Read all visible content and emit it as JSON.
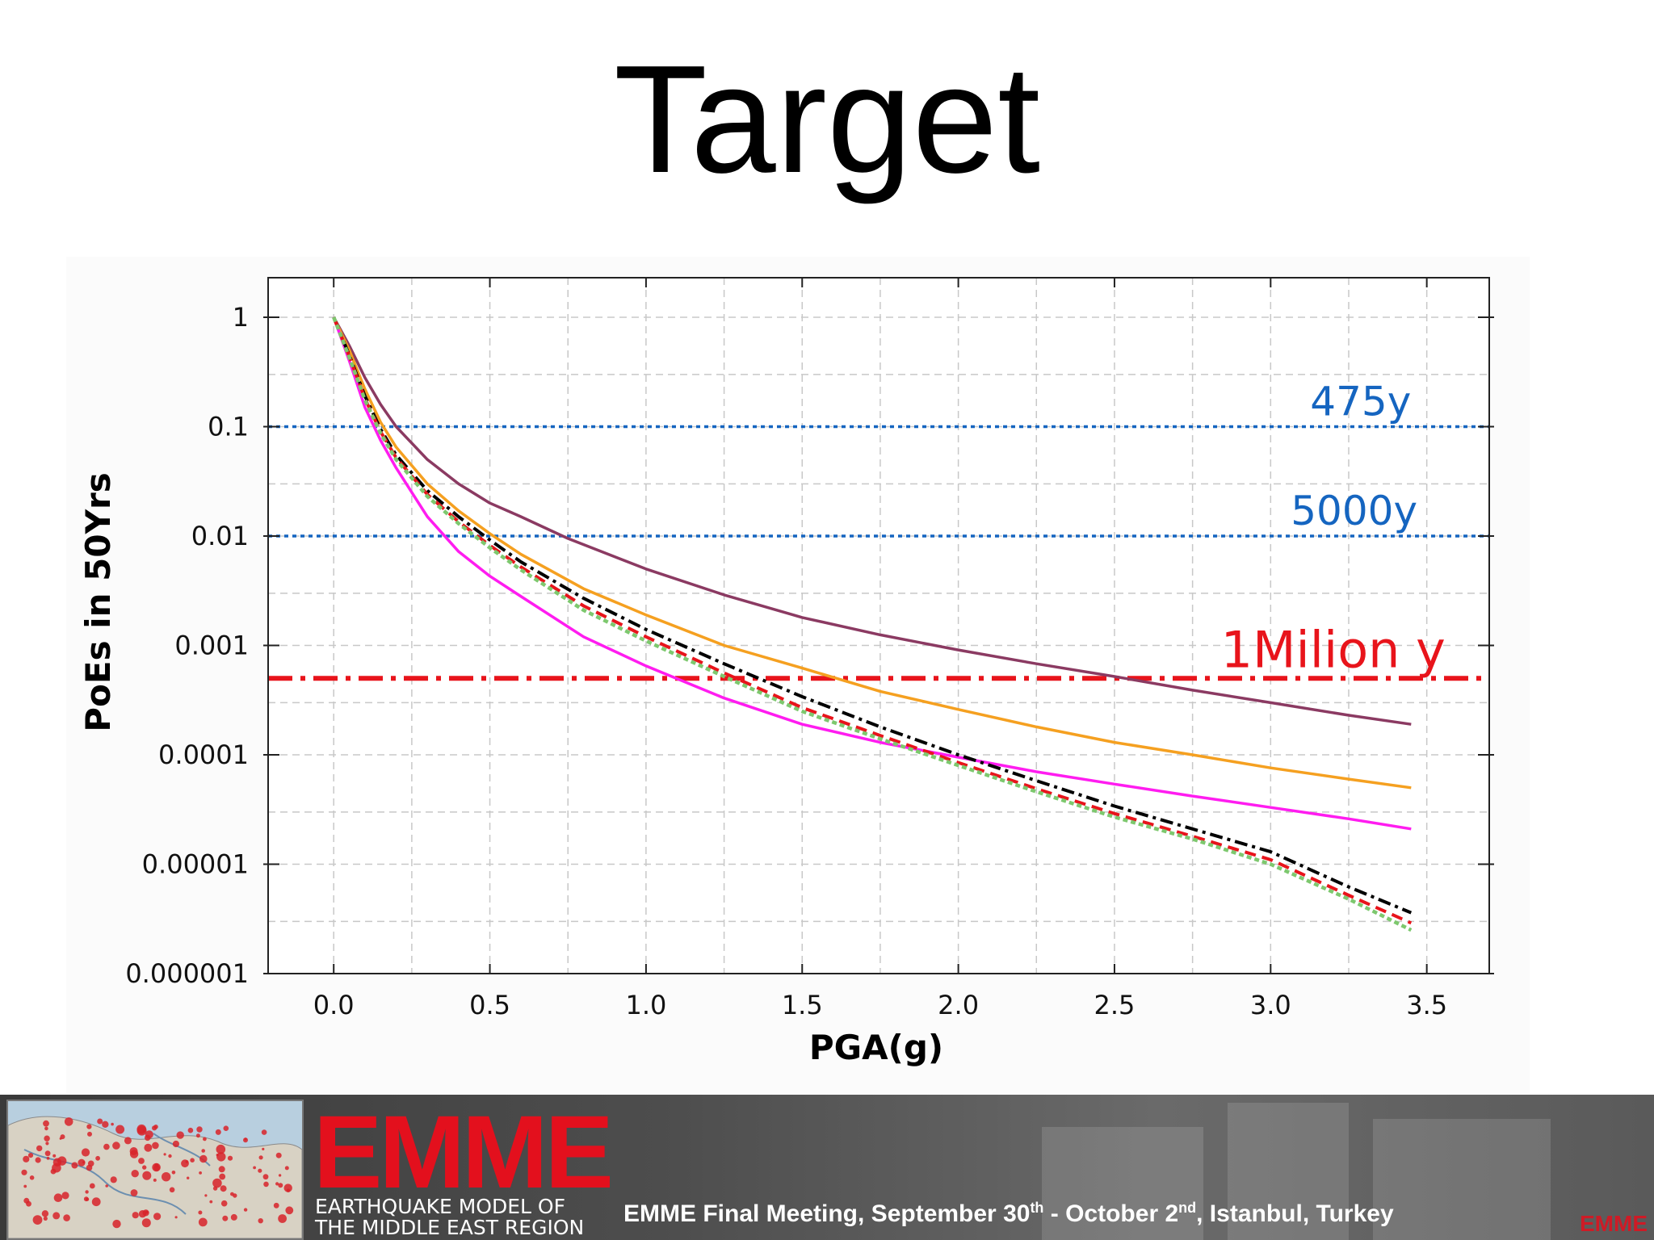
{
  "slide": {
    "title": "Target"
  },
  "chart_data": {
    "type": "line",
    "title": "",
    "xlabel": "PGA(g)",
    "ylabel": "PoEs in 50Yrs",
    "xlim": [
      -0.21,
      3.7
    ],
    "ylim": [
      1e-06,
      2.3
    ],
    "yscale": "log",
    "grid": true,
    "x_ticks": [
      {
        "value": 0.0,
        "label": "0.0"
      },
      {
        "value": 0.5,
        "label": "0.5"
      },
      {
        "value": 1.0,
        "label": "1.0"
      },
      {
        "value": 1.5,
        "label": "1.5"
      },
      {
        "value": 2.0,
        "label": "2.0"
      },
      {
        "value": 2.5,
        "label": "2.5"
      },
      {
        "value": 3.0,
        "label": "3.0"
      },
      {
        "value": 3.5,
        "label": "3.5"
      }
    ],
    "y_ticks": [
      {
        "value": 1,
        "label": "1"
      },
      {
        "value": 0.1,
        "label": "0.1"
      },
      {
        "value": 0.01,
        "label": "0.01"
      },
      {
        "value": 0.001,
        "label": "0.001"
      },
      {
        "value": 0.0001,
        "label": "0.0001"
      },
      {
        "value": 1e-05,
        "label": "0.00001"
      },
      {
        "value": 1e-06,
        "label": "0.000001"
      }
    ],
    "reference_lines": [
      {
        "value": 0.1,
        "label": "475y",
        "color": "#1565c0",
        "style": "dotted",
        "label_x": 3.45,
        "label_size": 50
      },
      {
        "value": 0.01,
        "label": "5000y",
        "color": "#1565c0",
        "style": "dotted",
        "label_x": 3.47,
        "label_size": 50
      },
      {
        "value": 0.0005,
        "label": "1Milion y",
        "color": "#e8141b",
        "style": "dashdot",
        "label_x": 3.56,
        "label_size": 62
      }
    ],
    "series": [
      {
        "color": "#8b3a62",
        "style": "solid",
        "x": [
          0.0,
          0.05,
          0.1,
          0.15,
          0.2,
          0.3,
          0.4,
          0.5,
          0.6,
          0.75,
          1.0,
          1.25,
          1.5,
          1.75,
          2.0,
          2.25,
          2.5,
          2.75,
          3.0,
          3.25,
          3.45
        ],
        "y": [
          1.0,
          0.55,
          0.28,
          0.16,
          0.1,
          0.05,
          0.03,
          0.02,
          0.015,
          0.0095,
          0.005,
          0.0029,
          0.0018,
          0.00125,
          0.00091,
          0.00068,
          0.00052,
          0.00039,
          0.0003,
          0.00023,
          0.00019
        ]
      },
      {
        "color": "#f5a020",
        "style": "solid",
        "x": [
          0.0,
          0.05,
          0.1,
          0.15,
          0.2,
          0.3,
          0.4,
          0.5,
          0.6,
          0.8,
          1.0,
          1.25,
          1.5,
          1.75,
          2.0,
          2.25,
          2.5,
          2.75,
          3.0,
          3.25,
          3.45
        ],
        "y": [
          1.0,
          0.5,
          0.22,
          0.11,
          0.065,
          0.03,
          0.017,
          0.0105,
          0.0068,
          0.0033,
          0.0019,
          0.001,
          0.00062,
          0.00038,
          0.00026,
          0.00018,
          0.00013,
          0.0001,
          7.6e-05,
          6e-05,
          5e-05
        ]
      },
      {
        "color": "#ff1cf0",
        "style": "solid",
        "x": [
          0.0,
          0.05,
          0.1,
          0.15,
          0.2,
          0.3,
          0.4,
          0.5,
          0.6,
          0.8,
          1.0,
          1.25,
          1.5,
          1.75,
          2.0,
          2.25,
          2.5,
          2.75,
          3.0,
          3.25,
          3.45
        ],
        "y": [
          1.0,
          0.4,
          0.15,
          0.075,
          0.042,
          0.015,
          0.0072,
          0.0043,
          0.0028,
          0.0012,
          0.00065,
          0.00033,
          0.00019,
          0.00013,
          9.5e-05,
          7e-05,
          5.4e-05,
          4.2e-05,
          3.3e-05,
          2.6e-05,
          2.1e-05
        ]
      },
      {
        "color": "#000000",
        "style": "dashdot",
        "x": [
          0.0,
          0.05,
          0.1,
          0.15,
          0.2,
          0.3,
          0.4,
          0.5,
          0.6,
          0.8,
          1.0,
          1.25,
          1.5,
          1.75,
          2.0,
          2.25,
          2.5,
          2.75,
          3.0,
          3.25,
          3.45
        ],
        "y": [
          1.0,
          0.45,
          0.19,
          0.095,
          0.055,
          0.026,
          0.015,
          0.0092,
          0.0058,
          0.0027,
          0.0014,
          0.00068,
          0.00034,
          0.00018,
          0.0001,
          5.8e-05,
          3.4e-05,
          2.1e-05,
          1.3e-05,
          6.2e-06,
          3.6e-06
        ]
      },
      {
        "color": "#e8141b",
        "style": "dashed",
        "x": [
          0.0,
          0.05,
          0.1,
          0.15,
          0.2,
          0.3,
          0.4,
          0.5,
          0.6,
          0.8,
          1.0,
          1.25,
          1.5,
          1.75,
          2.0,
          2.25,
          2.5,
          2.75,
          3.0,
          3.25,
          3.45
        ],
        "y": [
          1.0,
          0.44,
          0.18,
          0.09,
          0.052,
          0.024,
          0.0135,
          0.0082,
          0.0052,
          0.0023,
          0.0012,
          0.00056,
          0.00027,
          0.00015,
          8.5e-05,
          4.9e-05,
          2.9e-05,
          1.8e-05,
          1.1e-05,
          5.2e-06,
          2.9e-06
        ]
      },
      {
        "color": "#7dc86e",
        "style": "dotted",
        "x": [
          0.0,
          0.05,
          0.1,
          0.15,
          0.2,
          0.3,
          0.4,
          0.5,
          0.6,
          0.8,
          1.0,
          1.25,
          1.5,
          1.75,
          2.0,
          2.25,
          2.5,
          2.75,
          3.0,
          3.25,
          3.45
        ],
        "y": [
          1.0,
          0.43,
          0.175,
          0.087,
          0.05,
          0.023,
          0.013,
          0.0078,
          0.0049,
          0.0021,
          0.0011,
          0.00052,
          0.00025,
          0.00014,
          8e-05,
          4.6e-05,
          2.7e-05,
          1.7e-05,
          1e-05,
          4.8e-06,
          2.5e-06
        ]
      }
    ]
  },
  "footer": {
    "logo_text": "EMME",
    "logo_sub_line1": "EARTHQUAKE MODEL OF",
    "logo_sub_line2": "THE MIDDLE EAST REGION",
    "meeting_part1": "EMME Final Meeting, September 30",
    "meeting_sup1": "th",
    "meeting_part2": " - October 2",
    "meeting_sup2": "nd",
    "meeting_part3": ", Istanbul, Turkey",
    "corner_mark": "EMME"
  }
}
